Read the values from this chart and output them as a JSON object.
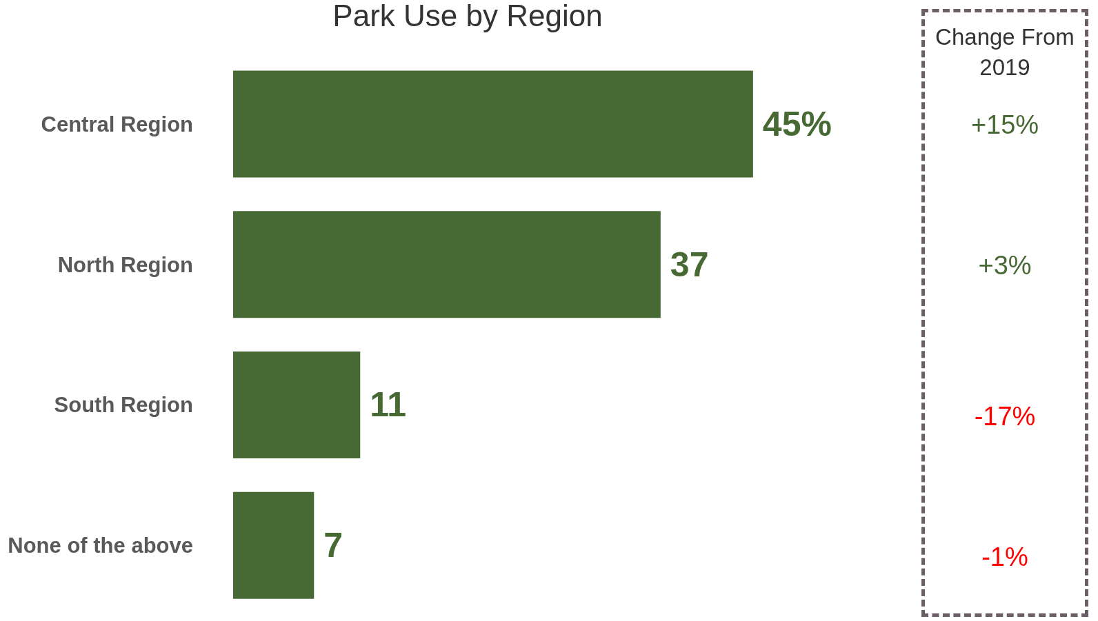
{
  "chart_data": [
    {
      "type": "bar",
      "title": "Park Use by Region",
      "orientation": "horizontal",
      "categories": [
        "Central Region",
        "North Region",
        "South Region",
        "None of the above"
      ],
      "values": [
        45,
        37,
        11,
        7
      ],
      "color": "#476933",
      "value_labels": [
        "45%",
        "37",
        "11",
        "7"
      ],
      "grid": false,
      "legend": false
    },
    {
      "type": "other",
      "title": "Change From 2019",
      "annotations": [
        "+15%",
        "+3%",
        "-17%",
        "-1%"
      ]
    }
  ]
}
